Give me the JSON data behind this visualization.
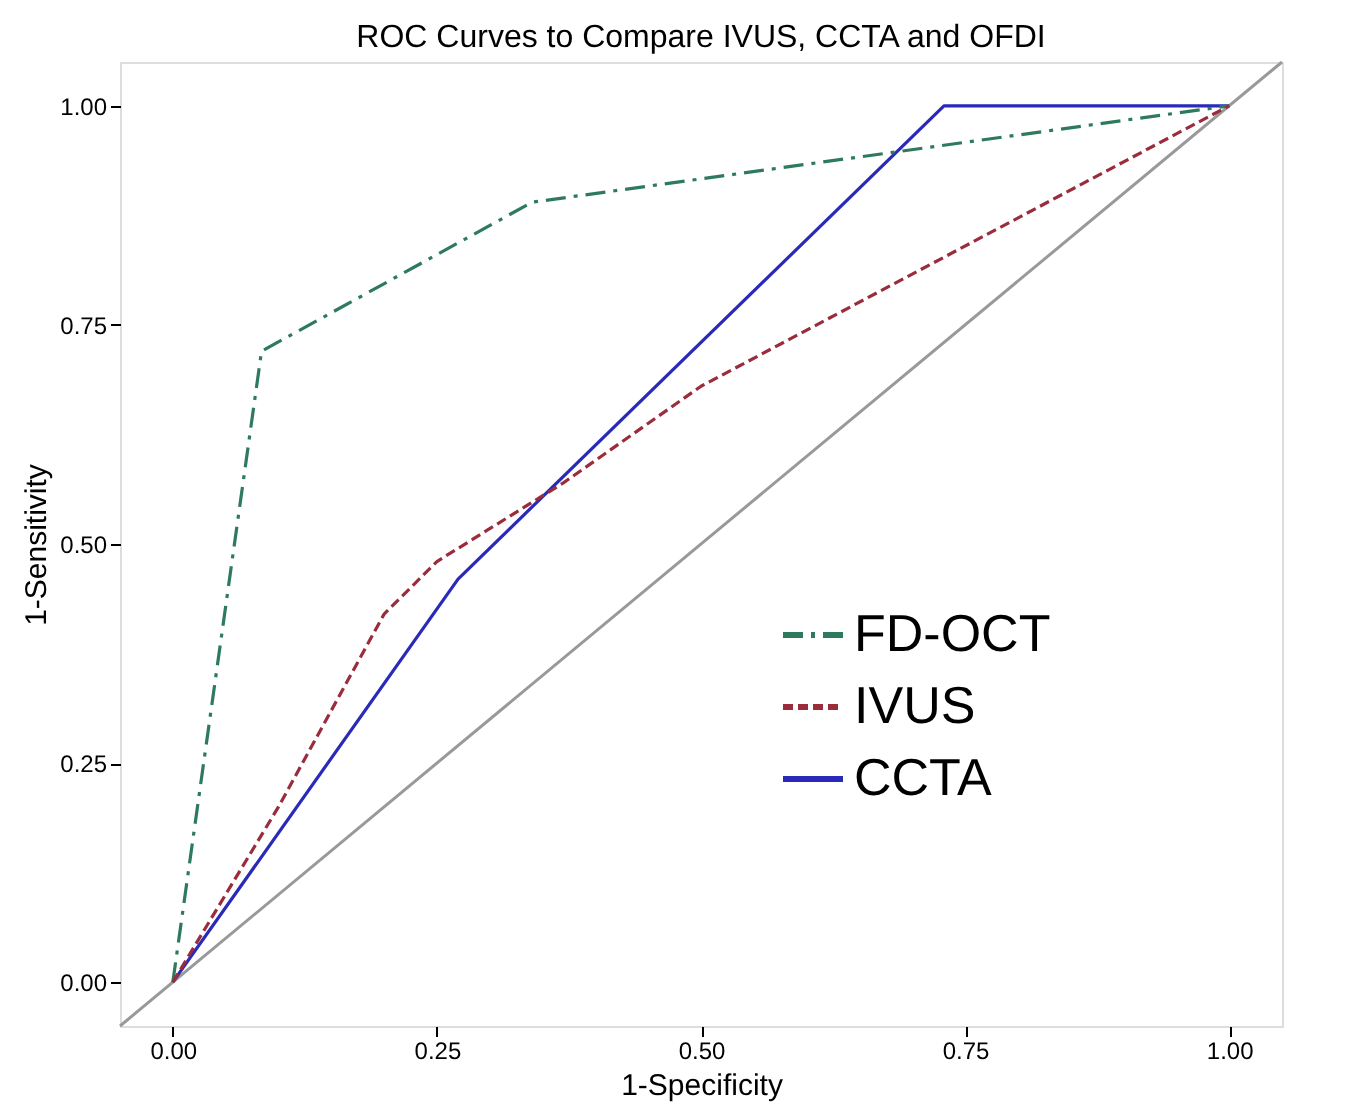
{
  "chart_data": {
    "type": "line",
    "title": "ROC Curves to Compare IVUS, CCTA and OFDI",
    "xlabel": "1-Specificity",
    "ylabel": "1-Sensitivity",
    "xlim": [
      -0.05,
      1.05
    ],
    "ylim": [
      -0.05,
      1.05
    ],
    "xticks": [
      {
        "value": 0,
        "label": "0.00"
      },
      {
        "value": 0.25,
        "label": "0.25"
      },
      {
        "value": 0.5,
        "label": "0.50"
      },
      {
        "value": 0.75,
        "label": "0.75"
      },
      {
        "value": 1,
        "label": "1.00"
      }
    ],
    "yticks": [
      {
        "value": 0,
        "label": "0.00"
      },
      {
        "value": 0.25,
        "label": "0.25"
      },
      {
        "value": 0.5,
        "label": "0.50"
      },
      {
        "value": 0.75,
        "label": "0.75"
      },
      {
        "value": 1,
        "label": "1.00"
      }
    ],
    "grid": false,
    "legend": "bottom right",
    "series": [
      {
        "name": "FD-OCT",
        "color": "#2e7a5c",
        "line_style": "dashdot",
        "x": [
          0,
          0.084,
          0.34,
          1
        ],
        "values": [
          0,
          0.72,
          0.89,
          1
        ]
      },
      {
        "name": "IVUS",
        "color": "#9a2c3c",
        "line_style": "dashed",
        "x": [
          0,
          0.1,
          0.2,
          0.25,
          0.37,
          0.5,
          1
        ],
        "values": [
          0,
          0.2,
          0.42,
          0.48,
          0.57,
          0.68,
          1
        ]
      },
      {
        "name": "CCTA",
        "color": "#2a2ab8",
        "line_style": "solid",
        "x": [
          0,
          0.27,
          0.73,
          1
        ],
        "values": [
          0,
          0.46,
          1,
          1
        ]
      },
      {
        "color": "#999999",
        "line_style": "solid",
        "x": [
          -0.05,
          1.05
        ],
        "values": [
          -0.05,
          1.05
        ]
      }
    ]
  }
}
